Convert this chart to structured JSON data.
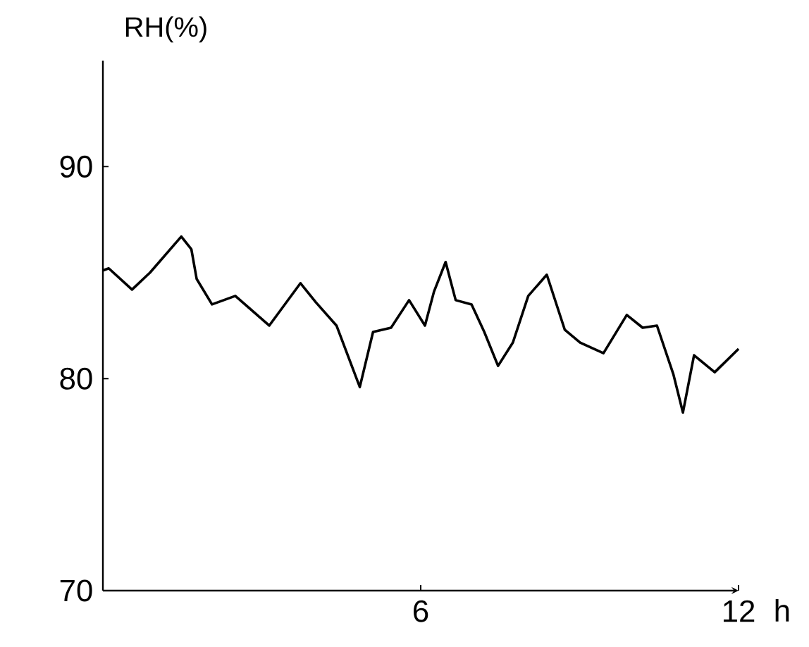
{
  "chart_data": {
    "type": "line",
    "xlabel": "h",
    "ylabel": "RH(%)",
    "xlim": [
      0,
      12
    ],
    "ylim": [
      70,
      95
    ],
    "xticks": [
      6,
      12
    ],
    "yticks": [
      70,
      80,
      90
    ],
    "grid": false,
    "marker": "none",
    "line_style": "solid",
    "series": [
      {
        "color": "#000000",
        "x": [
          0,
          0.11,
          0.55,
          0.89,
          1.48,
          1.67,
          1.77,
          2.06,
          2.5,
          3.14,
          3.73,
          4.02,
          4.41,
          4.85,
          5.1,
          5.44,
          5.78,
          6.08,
          6.25,
          6.47,
          6.66,
          6.96,
          7.2,
          7.46,
          7.74,
          8.03,
          8.38,
          8.72,
          9.01,
          9.45,
          9.89,
          10.19,
          10.46,
          10.77,
          10.95,
          11.16,
          11.55,
          12
        ],
        "values": [
          85.1,
          85.2,
          84.2,
          85.0,
          86.7,
          86.1,
          84.7,
          83.5,
          83.9,
          82.5,
          84.5,
          83.6,
          82.5,
          79.6,
          82.2,
          82.4,
          83.7,
          82.5,
          84.1,
          85.5,
          83.7,
          83.5,
          82.2,
          80.6,
          81.7,
          83.9,
          84.9,
          82.3,
          81.7,
          81.2,
          83.0,
          82.4,
          82.5,
          80.2,
          78.4,
          81.1,
          80.3,
          81.4
        ]
      }
    ]
  }
}
